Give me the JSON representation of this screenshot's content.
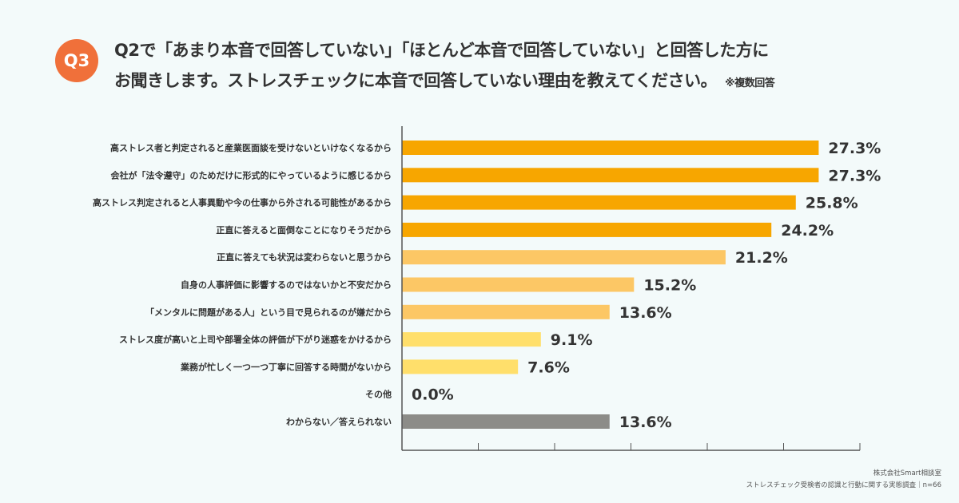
{
  "header": {
    "badge": "Q3",
    "title_line1": "Q2で「あまり本音で回答していない」「ほとんど本音で回答していない」と回答した方に",
    "title_line2": "お聞きします。ストレスチェックに本音で回答していない理由を教えてください。",
    "note": "※複数回答"
  },
  "source": {
    "company": "株式会社Smart相談室",
    "survey": "ストレスチェック受検者の認識と行動に関する実態調査｜n=66"
  },
  "chart_data": {
    "type": "bar",
    "orientation": "horizontal",
    "categories": [
      "高ストレス者と判定されると産業医面談を受けないといけなくなるから",
      "会社が「法令遵守」のためだけに形式的にやっているように感じるから",
      "高ストレス判定されると人事異動や今の仕事から外される可能性があるから",
      "正直に答えると面倒なことになりそうだから",
      "正直に答えても状況は変わらないと思うから",
      "自身の人事評価に影響するのではないかと不安だから",
      "「メンタルに問題がある人」という目で見られるのが嫌だから",
      "ストレス度が高いと上司や部署全体の評価が下がり迷惑をかけるから",
      "業務が忙しく一つ一つ丁寧に回答する時間がないから",
      "その他",
      "わからない／答えられない"
    ],
    "values": [
      27.3,
      27.3,
      25.8,
      24.2,
      21.2,
      15.2,
      13.6,
      9.1,
      7.6,
      0.0,
      13.6
    ],
    "value_labels": [
      "27.3%",
      "27.3%",
      "25.8%",
      "24.2%",
      "21.2%",
      "15.2%",
      "13.6%",
      "9.1%",
      "7.6%",
      "0.0%",
      "13.6%"
    ],
    "colors": [
      "#f7a600",
      "#f7a600",
      "#f7a600",
      "#f7a600",
      "#fcc765",
      "#fcc765",
      "#fcc765",
      "#ffdf6b",
      "#ffdf6b",
      "#ffdf6b",
      "#8c8c88"
    ],
    "xlim": [
      0,
      30
    ],
    "xtick_step": 5,
    "xtick_labels_shown": false,
    "grid": false
  }
}
